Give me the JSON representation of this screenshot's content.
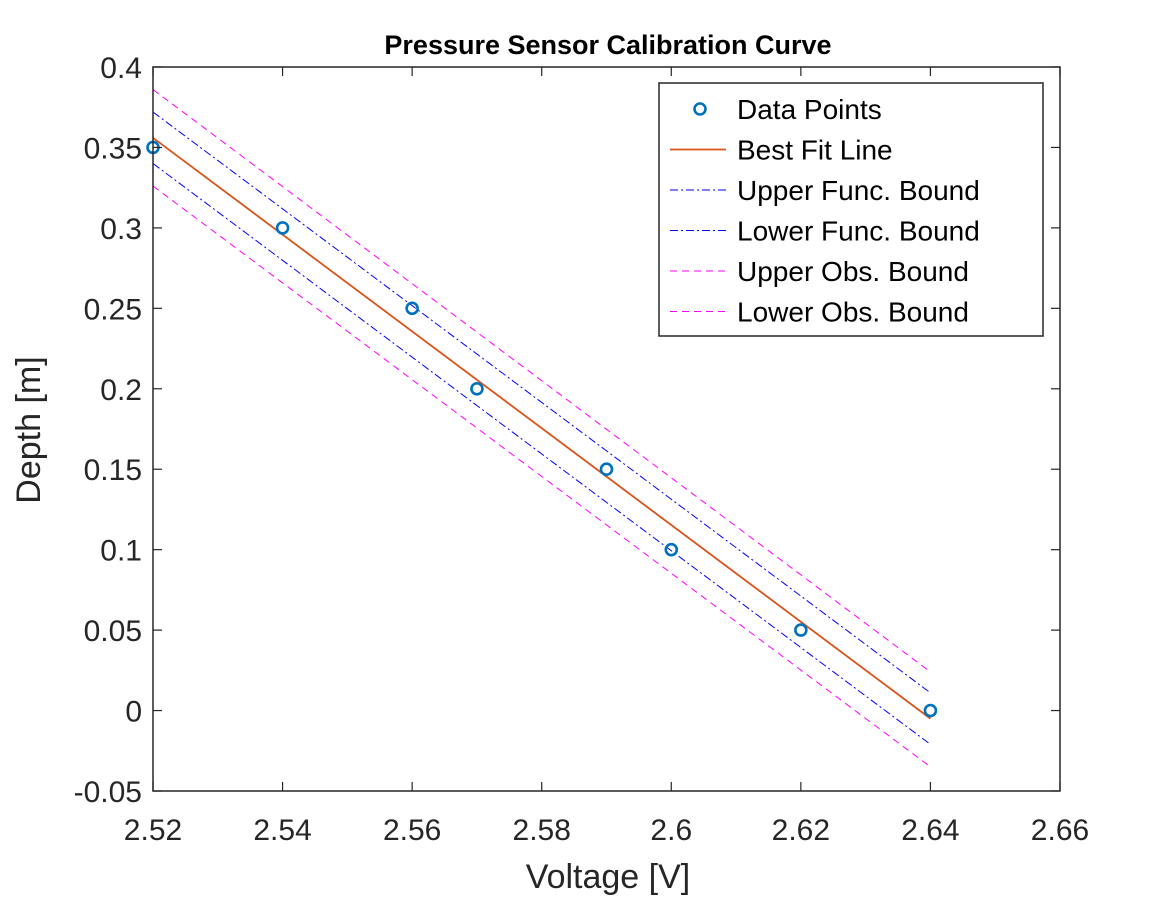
{
  "chart_data": {
    "type": "line",
    "title": "Pressure Sensor Calibration Curve",
    "xlabel": "Voltage [V]",
    "ylabel": "Depth [m]",
    "xlim": [
      2.52,
      2.66
    ],
    "ylim": [
      -0.05,
      0.4
    ],
    "xticks": [
      2.52,
      2.54,
      2.56,
      2.58,
      2.6,
      2.62,
      2.64,
      2.66
    ],
    "xtick_labels": [
      "2.52",
      "2.54",
      "2.56",
      "2.58",
      "2.6",
      "2.62",
      "2.64",
      "2.66"
    ],
    "yticks": [
      -0.05,
      0,
      0.05,
      0.1,
      0.15,
      0.2,
      0.25,
      0.3,
      0.35,
      0.4
    ],
    "ytick_labels": [
      "-0.05",
      "0",
      "0.05",
      "0.1",
      "0.15",
      "0.2",
      "0.25",
      "0.3",
      "0.35",
      "0.4"
    ],
    "grid": false,
    "legend_position": "top-right",
    "series": [
      {
        "name": "Data Points",
        "kind": "markers",
        "color": "#0072BD",
        "x": [
          2.52,
          2.54,
          2.56,
          2.57,
          2.59,
          2.6,
          2.62,
          2.64
        ],
        "y": [
          0.35,
          0.3,
          0.25,
          0.2,
          0.15,
          0.1,
          0.05,
          0.0
        ]
      },
      {
        "name": "Best Fit Line",
        "kind": "line",
        "style": "solid",
        "color": "#D95319",
        "x": [
          2.52,
          2.64
        ],
        "y": [
          0.356,
          -0.005
        ]
      },
      {
        "name": "Upper Func. Bound",
        "kind": "line",
        "style": "dashdot",
        "color": "#0000FF",
        "x": [
          2.52,
          2.64
        ],
        "y": [
          0.372,
          0.011
        ]
      },
      {
        "name": "Lower Func. Bound",
        "kind": "line",
        "style": "dashdot",
        "color": "#0000FF",
        "x": [
          2.52,
          2.64
        ],
        "y": [
          0.34,
          -0.021
        ]
      },
      {
        "name": "Upper Obs. Bound",
        "kind": "line",
        "style": "dashed",
        "color": "#FF00FF",
        "x": [
          2.52,
          2.64
        ],
        "y": [
          0.386,
          0.024
        ]
      },
      {
        "name": "Lower Obs. Bound",
        "kind": "line",
        "style": "dashed",
        "color": "#FF00FF",
        "x": [
          2.52,
          2.64
        ],
        "y": [
          0.326,
          -0.035
        ]
      }
    ]
  }
}
